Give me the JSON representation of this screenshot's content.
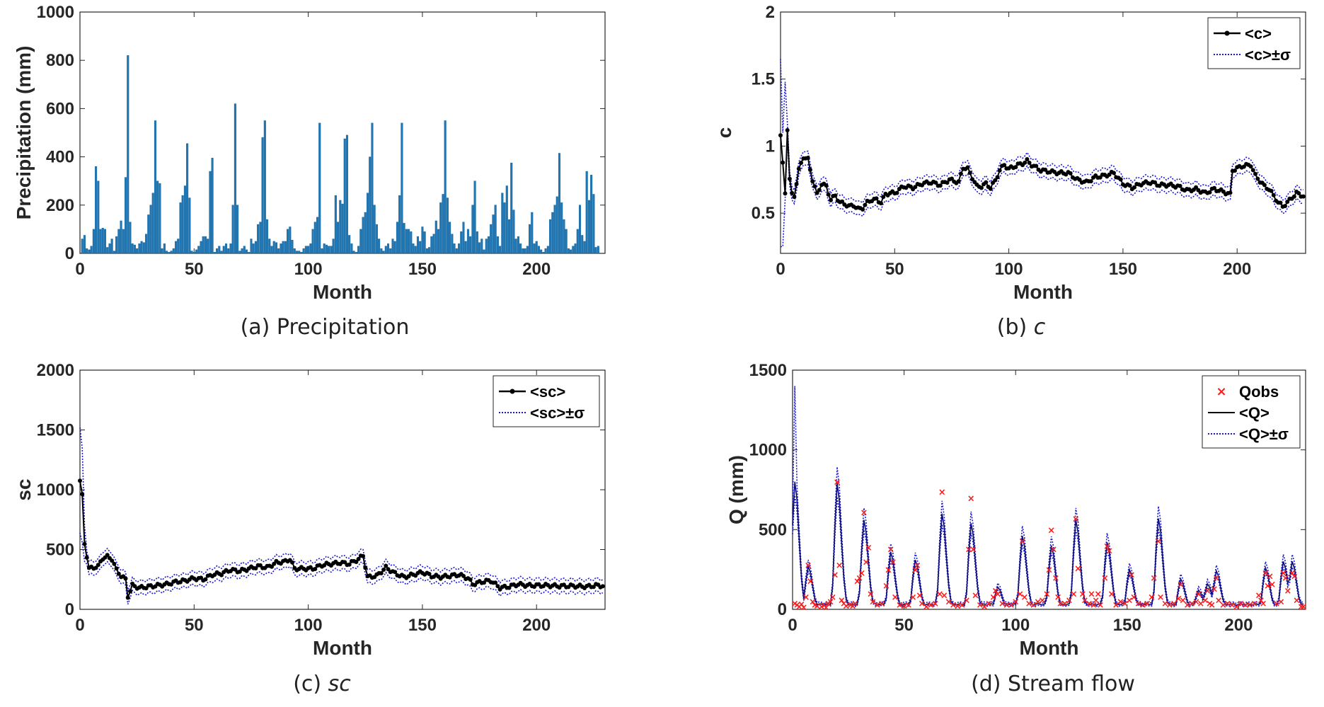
{
  "chart_data": [
    {
      "id": "precip",
      "type": "bar",
      "caption": "(a) Precipitation",
      "xlabel": "Month",
      "ylabel": "Precipitation (mm)",
      "xlim": [
        0,
        230
      ],
      "ylim": [
        0,
        1000
      ],
      "xticks": [
        0,
        50,
        100,
        150,
        200
      ],
      "yticks": [
        0,
        200,
        400,
        600,
        800,
        1000
      ],
      "colors": {
        "bar": "#1f77b4",
        "edge": "#0b5d99"
      },
      "values": [
        60,
        75,
        20,
        15,
        30,
        100,
        360,
        300,
        100,
        105,
        100,
        25,
        40,
        60,
        10,
        70,
        100,
        135,
        100,
        315,
        820,
        130,
        40,
        35,
        20,
        40,
        50,
        45,
        80,
        160,
        200,
        250,
        550,
        300,
        290,
        20,
        40,
        10,
        5,
        10,
        20,
        50,
        60,
        210,
        240,
        280,
        455,
        230,
        10,
        5,
        15,
        30,
        50,
        70,
        70,
        60,
        340,
        395,
        5,
        20,
        30,
        10,
        30,
        40,
        20,
        40,
        200,
        620,
        200,
        10,
        20,
        30,
        15,
        5,
        60,
        40,
        50,
        120,
        130,
        480,
        550,
        140,
        60,
        30,
        50,
        45,
        20,
        40,
        50,
        50,
        100,
        110,
        55,
        20,
        10,
        10,
        5,
        20,
        30,
        30,
        40,
        100,
        130,
        150,
        540,
        20,
        40,
        35,
        30,
        30,
        60,
        240,
        130,
        220,
        205,
        475,
        490,
        75,
        40,
        10,
        5,
        30,
        100,
        150,
        170,
        250,
        400,
        540,
        200,
        120,
        60,
        20,
        10,
        30,
        40,
        20,
        60,
        50,
        130,
        240,
        540,
        125,
        100,
        100,
        90,
        40,
        30,
        70,
        50,
        110,
        90,
        20,
        25,
        70,
        80,
        135,
        100,
        210,
        245,
        550,
        230,
        130,
        80,
        40,
        20,
        40,
        90,
        130,
        50,
        100,
        70,
        200,
        300,
        90,
        45,
        60,
        15,
        60,
        70,
        120,
        160,
        200,
        70,
        30,
        250,
        210,
        280,
        140,
        375,
        180,
        60,
        70,
        40,
        20,
        20,
        30,
        120,
        170,
        40,
        50,
        30,
        15,
        5,
        20,
        30,
        140,
        170,
        200,
        235,
        415,
        210,
        140,
        100,
        20,
        15,
        30,
        40,
        100,
        200,
        75,
        50,
        340,
        220,
        325,
        245,
        25,
        30
      ]
    },
    {
      "id": "c",
      "type": "line",
      "caption_prefix": "(b) ",
      "caption_symbol": "c",
      "xlabel": "Month",
      "ylabel": "c",
      "xlim": [
        0,
        230
      ],
      "ylim": [
        0.2,
        2
      ],
      "xticks": [
        0,
        50,
        100,
        150,
        200
      ],
      "yticks": [
        0.5,
        1,
        1.5,
        2
      ],
      "ytick_labels": [
        "0.5",
        "1",
        "1.5",
        "2"
      ],
      "legend": {
        "mean": "<c>",
        "band": "<c>±σ",
        "location": "top-right"
      },
      "colors": {
        "mean": "#000000",
        "band": "#1a1ad6"
      },
      "anchors_x": [
        0,
        2,
        3,
        4,
        5,
        6,
        8,
        10,
        12,
        14,
        16,
        18,
        20,
        22,
        24,
        26,
        28,
        30,
        32,
        34,
        36,
        38,
        40,
        42,
        44,
        46,
        48,
        50,
        54,
        58,
        62,
        66,
        70,
        74,
        78,
        80,
        82,
        86,
        88,
        90,
        92,
        94,
        96,
        98,
        100,
        104,
        106,
        108,
        110,
        114,
        118,
        122,
        126,
        130,
        134,
        138,
        142,
        146,
        150,
        154,
        158,
        162,
        166,
        170,
        174,
        178,
        182,
        186,
        190,
        194,
        197,
        198,
        202,
        206,
        208,
        210,
        212,
        214,
        216,
        218,
        220,
        222,
        226,
        230
      ],
      "anchors_mean": [
        1.08,
        0.65,
        1.13,
        0.75,
        0.64,
        0.63,
        0.82,
        0.92,
        0.9,
        0.75,
        0.64,
        0.72,
        0.7,
        0.6,
        0.63,
        0.58,
        0.57,
        0.55,
        0.56,
        0.53,
        0.54,
        0.58,
        0.6,
        0.6,
        0.58,
        0.64,
        0.65,
        0.65,
        0.7,
        0.69,
        0.72,
        0.73,
        0.71,
        0.75,
        0.73,
        0.84,
        0.83,
        0.7,
        0.7,
        0.72,
        0.69,
        0.74,
        0.82,
        0.86,
        0.83,
        0.86,
        0.87,
        0.89,
        0.86,
        0.82,
        0.81,
        0.8,
        0.8,
        0.75,
        0.73,
        0.77,
        0.78,
        0.8,
        0.72,
        0.69,
        0.72,
        0.73,
        0.71,
        0.71,
        0.7,
        0.67,
        0.68,
        0.65,
        0.68,
        0.66,
        0.64,
        0.82,
        0.85,
        0.86,
        0.78,
        0.74,
        0.7,
        0.68,
        0.63,
        0.58,
        0.55,
        0.58,
        0.65,
        0.62
      ],
      "band_upper_start": [
        1.65,
        1.1,
        1.48
      ],
      "band_lower_start": [
        0.25,
        0.25,
        0.6
      ],
      "band_halfwidth": 0.05
    },
    {
      "id": "sc",
      "type": "line",
      "caption_prefix": "(c) ",
      "caption_symbol": "sc",
      "xlabel": "Month",
      "ylabel": "sc",
      "xlim": [
        0,
        230
      ],
      "ylim": [
        0,
        2000
      ],
      "xticks": [
        0,
        50,
        100,
        150,
        200
      ],
      "yticks": [
        0,
        500,
        1000,
        1500,
        2000
      ],
      "legend": {
        "mean": "<sc>",
        "band": "<sc>±σ",
        "location": "top-right"
      },
      "colors": {
        "mean": "#000000",
        "band": "#1a1ad6"
      },
      "anchors_x": [
        0,
        1,
        2,
        4,
        6,
        8,
        10,
        12,
        14,
        16,
        18,
        20,
        21,
        23,
        26,
        30,
        34,
        38,
        42,
        46,
        50,
        54,
        58,
        62,
        66,
        70,
        74,
        78,
        82,
        86,
        90,
        92,
        94,
        98,
        102,
        106,
        110,
        114,
        118,
        122,
        124,
        126,
        130,
        134,
        138,
        142,
        146,
        150,
        154,
        158,
        162,
        166,
        170,
        172,
        176,
        180,
        182,
        184,
        188,
        192,
        196,
        200,
        204,
        210,
        216,
        222,
        226,
        230
      ],
      "anchors_mean": [
        1075,
        950,
        550,
        340,
        350,
        360,
        430,
        440,
        420,
        330,
        280,
        250,
        110,
        200,
        180,
        190,
        200,
        210,
        230,
        240,
        260,
        250,
        290,
        300,
        330,
        320,
        340,
        360,
        350,
        390,
        400,
        420,
        340,
        340,
        340,
        370,
        380,
        390,
        380,
        420,
        450,
        270,
        280,
        350,
        300,
        270,
        290,
        310,
        280,
        270,
        280,
        290,
        260,
        210,
        230,
        240,
        210,
        180,
        190,
        210,
        200,
        200,
        200,
        195,
        195,
        190,
        200,
        195
      ],
      "band_upper_start": [
        1520,
        1350,
        700
      ],
      "band_lower_start": [
        640,
        560,
        400
      ],
      "band_halfwidth": 55
    },
    {
      "id": "q",
      "type": "line",
      "caption": "(d) Stream flow",
      "xlabel": "Month",
      "ylabel": "Q (mm)",
      "xlim": [
        0,
        230
      ],
      "ylim": [
        0,
        1500
      ],
      "xticks": [
        0,
        50,
        100,
        150,
        200
      ],
      "yticks": [
        0,
        500,
        1000,
        1500
      ],
      "legend": {
        "obs": "Qobs",
        "mean": "<Q>",
        "band": "<Q>±σ",
        "location": "top-right"
      },
      "colors": {
        "obs": "#ff1a1a",
        "mean": "#000000",
        "band": "#1a1ad6"
      },
      "peaks": [
        [
          1,
          800,
          1400
        ],
        [
          7,
          270,
          0
        ],
        [
          20,
          790,
          0
        ],
        [
          32,
          560,
          0
        ],
        [
          44,
          360,
          0
        ],
        [
          55,
          310,
          0
        ],
        [
          67,
          600,
          0
        ],
        [
          80,
          540,
          0
        ],
        [
          92,
          140,
          0
        ],
        [
          103,
          460,
          0
        ],
        [
          116,
          400,
          0
        ],
        [
          127,
          560,
          0
        ],
        [
          141,
          420,
          0
        ],
        [
          151,
          250,
          0
        ],
        [
          164,
          570,
          0
        ],
        [
          174,
          190,
          0
        ],
        [
          182,
          120,
          0
        ],
        [
          186,
          160,
          0
        ],
        [
          190,
          240,
          0
        ],
        [
          212,
          260,
          0
        ],
        [
          220,
          300,
          0
        ],
        [
          224,
          300,
          0
        ]
      ],
      "baseline": 25,
      "obs": [
        [
          1,
          40
        ],
        [
          2,
          30
        ],
        [
          3,
          20
        ],
        [
          4,
          35
        ],
        [
          5,
          15
        ],
        [
          6,
          80
        ],
        [
          7,
          280
        ],
        [
          8,
          180
        ],
        [
          9,
          50
        ],
        [
          10,
          30
        ],
        [
          11,
          25
        ],
        [
          13,
          20
        ],
        [
          14,
          30
        ],
        [
          15,
          15
        ],
        [
          16,
          40
        ],
        [
          17,
          50
        ],
        [
          18,
          80
        ],
        [
          19,
          220
        ],
        [
          20,
          800
        ],
        [
          21,
          280
        ],
        [
          22,
          60
        ],
        [
          23,
          40
        ],
        [
          24,
          25
        ],
        [
          26,
          30
        ],
        [
          27,
          25
        ],
        [
          28,
          40
        ],
        [
          29,
          180
        ],
        [
          30,
          200
        ],
        [
          31,
          230
        ],
        [
          32,
          610
        ],
        [
          33,
          300
        ],
        [
          34,
          390
        ],
        [
          35,
          100
        ],
        [
          36,
          50
        ],
        [
          38,
          30
        ],
        [
          40,
          40
        ],
        [
          42,
          150
        ],
        [
          43,
          250
        ],
        [
          44,
          380
        ],
        [
          45,
          300
        ],
        [
          46,
          80
        ],
        [
          48,
          30
        ],
        [
          50,
          25
        ],
        [
          52,
          30
        ],
        [
          54,
          80
        ],
        [
          55,
          250
        ],
        [
          56,
          280
        ],
        [
          57,
          90
        ],
        [
          58,
          40
        ],
        [
          60,
          20
        ],
        [
          62,
          30
        ],
        [
          64,
          40
        ],
        [
          66,
          100
        ],
        [
          67,
          740
        ],
        [
          68,
          90
        ],
        [
          70,
          50
        ],
        [
          72,
          30
        ],
        [
          74,
          25
        ],
        [
          76,
          30
        ],
        [
          78,
          60
        ],
        [
          79,
          380
        ],
        [
          80,
          700
        ],
        [
          81,
          380
        ],
        [
          82,
          90
        ],
        [
          84,
          30
        ],
        [
          86,
          20
        ],
        [
          88,
          40
        ],
        [
          90,
          80
        ],
        [
          91,
          120
        ],
        [
          92,
          100
        ],
        [
          94,
          40
        ],
        [
          96,
          30
        ],
        [
          98,
          30
        ],
        [
          100,
          50
        ],
        [
          102,
          100
        ],
        [
          103,
          430
        ],
        [
          104,
          80
        ],
        [
          106,
          40
        ],
        [
          108,
          30
        ],
        [
          110,
          50
        ],
        [
          112,
          60
        ],
        [
          114,
          100
        ],
        [
          115,
          250
        ],
        [
          116,
          500
        ],
        [
          117,
          380
        ],
        [
          118,
          200
        ],
        [
          119,
          80
        ],
        [
          120,
          40
        ],
        [
          122,
          40
        ],
        [
          124,
          60
        ],
        [
          126,
          100
        ],
        [
          127,
          570
        ],
        [
          128,
          260
        ],
        [
          130,
          100
        ],
        [
          131,
          60
        ],
        [
          133,
          40
        ],
        [
          134,
          100
        ],
        [
          135,
          30
        ],
        [
          136,
          60
        ],
        [
          137,
          100
        ],
        [
          138,
          30
        ],
        [
          140,
          200
        ],
        [
          141,
          400
        ],
        [
          142,
          370
        ],
        [
          143,
          100
        ],
        [
          145,
          30
        ],
        [
          147,
          50
        ],
        [
          149,
          40
        ],
        [
          151,
          60
        ],
        [
          152,
          220
        ],
        [
          153,
          80
        ],
        [
          155,
          40
        ],
        [
          157,
          30
        ],
        [
          159,
          40
        ],
        [
          161,
          80
        ],
        [
          162,
          200
        ],
        [
          164,
          430
        ],
        [
          165,
          80
        ],
        [
          167,
          40
        ],
        [
          169,
          30
        ],
        [
          171,
          40
        ],
        [
          173,
          70
        ],
        [
          174,
          160
        ],
        [
          175,
          60
        ],
        [
          177,
          30
        ],
        [
          179,
          40
        ],
        [
          181,
          50
        ],
        [
          182,
          100
        ],
        [
          183,
          40
        ],
        [
          185,
          60
        ],
        [
          186,
          120
        ],
        [
          187,
          40
        ],
        [
          188,
          30
        ],
        [
          189,
          130
        ],
        [
          190,
          200
        ],
        [
          191,
          60
        ],
        [
          193,
          30
        ],
        [
          195,
          40
        ],
        [
          197,
          30
        ],
        [
          199,
          20
        ],
        [
          201,
          40
        ],
        [
          203,
          30
        ],
        [
          205,
          30
        ],
        [
          207,
          40
        ],
        [
          209,
          90
        ],
        [
          210,
          60
        ],
        [
          211,
          40
        ],
        [
          212,
          230
        ],
        [
          213,
          150
        ],
        [
          214,
          210
        ],
        [
          215,
          160
        ],
        [
          217,
          40
        ],
        [
          219,
          50
        ],
        [
          220,
          230
        ],
        [
          221,
          200
        ],
        [
          222,
          120
        ],
        [
          224,
          230
        ],
        [
          225,
          210
        ],
        [
          226,
          60
        ],
        [
          228,
          20
        ],
        [
          229,
          20
        ]
      ]
    }
  ]
}
